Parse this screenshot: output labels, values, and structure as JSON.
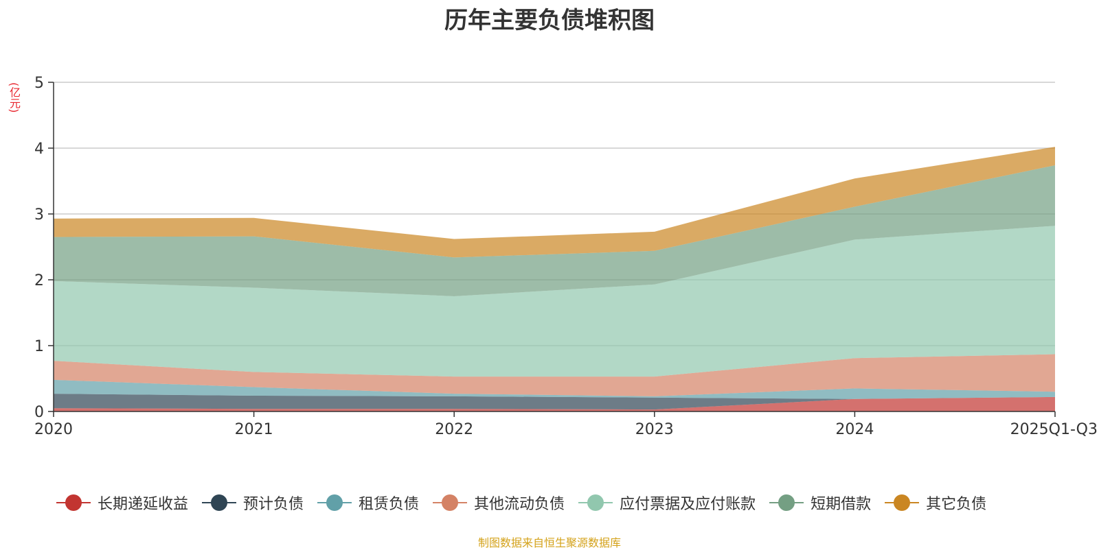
{
  "chart_data": {
    "type": "area",
    "stacked": true,
    "title": "历年主要负债堆积图",
    "unit": "(亿元)",
    "source": "制图数据来自恒生聚源数据库",
    "categories": [
      "2020",
      "2021",
      "2022",
      "2023",
      "2024",
      "2025Q1-Q3"
    ],
    "ylim": [
      0,
      5
    ],
    "yticks": [
      "0",
      "1",
      "2",
      "3",
      "4",
      "5"
    ],
    "series": [
      {
        "name": "长期递延收益",
        "color": "#c23531",
        "values": [
          0.05,
          0.04,
          0.04,
          0.03,
          0.19,
          0.22
        ]
      },
      {
        "name": "预计负债",
        "color": "#2f4554",
        "values": [
          0.22,
          0.2,
          0.19,
          0.18,
          0.0,
          0.0
        ]
      },
      {
        "name": "租赁负债",
        "color": "#61a0a8",
        "values": [
          0.21,
          0.13,
          0.04,
          0.02,
          0.16,
          0.08
        ]
      },
      {
        "name": "其他流动负债",
        "color": "#d48265",
        "values": [
          0.29,
          0.23,
          0.26,
          0.3,
          0.46,
          0.57
        ]
      },
      {
        "name": "应付票据及应付账款",
        "color": "#91c7ae",
        "values": [
          1.21,
          1.28,
          1.22,
          1.4,
          1.8,
          1.95
        ]
      },
      {
        "name": "短期借款",
        "color": "#749f83",
        "values": [
          0.67,
          0.78,
          0.59,
          0.51,
          0.5,
          0.92
        ]
      },
      {
        "name": "其它负债",
        "color": "#ca8622",
        "values": [
          0.28,
          0.28,
          0.28,
          0.29,
          0.43,
          0.28
        ]
      }
    ]
  }
}
